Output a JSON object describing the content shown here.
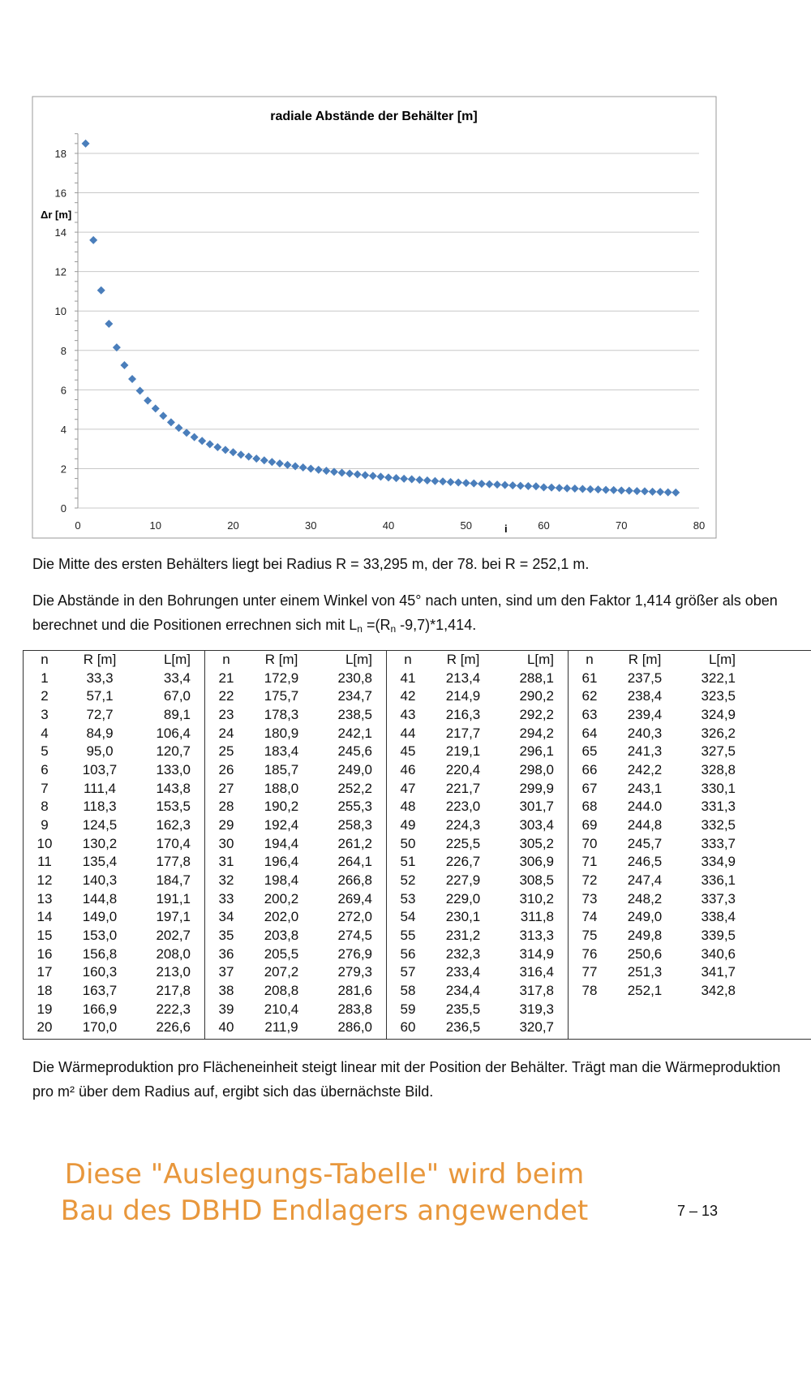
{
  "chart_data": {
    "type": "scatter",
    "title": "radiale Abstände der Behälter [m]",
    "xlabel": "i",
    "ylabel": "Δr [m]",
    "xlim": [
      0,
      80
    ],
    "ylim": [
      0,
      19
    ],
    "xticks": [
      0,
      10,
      20,
      30,
      40,
      50,
      60,
      70,
      80
    ],
    "yticks": [
      0,
      2,
      4,
      6,
      8,
      10,
      12,
      14,
      16,
      18
    ],
    "grid": true,
    "marker": "diamond",
    "color": "#4a7ebb",
    "x": [
      1,
      2,
      3,
      4,
      5,
      6,
      7,
      8,
      9,
      10,
      11,
      12,
      13,
      14,
      15,
      16,
      17,
      18,
      19,
      20,
      21,
      22,
      23,
      24,
      25,
      26,
      27,
      28,
      29,
      30,
      31,
      32,
      33,
      34,
      35,
      36,
      37,
      38,
      39,
      40,
      41,
      42,
      43,
      44,
      45,
      46,
      47,
      48,
      49,
      50,
      51,
      52,
      53,
      54,
      55,
      56,
      57,
      58,
      59,
      60,
      61,
      62,
      63,
      64,
      65,
      66,
      67,
      68,
      69,
      70,
      71,
      72,
      73,
      74,
      75,
      76,
      77
    ],
    "y": [
      18.5,
      13.6,
      11.05,
      9.35,
      8.15,
      7.25,
      6.55,
      5.95,
      5.45,
      5.05,
      4.68,
      4.35,
      4.07,
      3.82,
      3.6,
      3.41,
      3.24,
      3.09,
      2.95,
      2.83,
      2.71,
      2.61,
      2.51,
      2.42,
      2.34,
      2.26,
      2.19,
      2.12,
      2.06,
      2.0,
      1.94,
      1.89,
      1.84,
      1.79,
      1.75,
      1.71,
      1.67,
      1.63,
      1.59,
      1.55,
      1.52,
      1.49,
      1.46,
      1.43,
      1.4,
      1.37,
      1.35,
      1.32,
      1.3,
      1.27,
      1.25,
      1.23,
      1.21,
      1.19,
      1.17,
      1.15,
      1.13,
      1.11,
      1.1,
      1.05,
      1.04,
      1.02,
      1.0,
      0.99,
      0.97,
      0.95,
      0.94,
      0.92,
      0.91,
      0.89,
      0.88,
      0.86,
      0.85,
      0.83,
      0.82,
      0.8,
      0.79
    ]
  },
  "text": {
    "p1": "Die Mitte des ersten Behälters liegt bei Radius R = 33,295 m, der 78. bei R = 252,1 m.",
    "p2a": "Die Abstände in den Bohrungen unter einem Winkel von 45° nach unten, sind um den Faktor 1,414 größer als oben berechnet und die Positionen errechnen sich mit L",
    "p2sub1": "n",
    "p2b": " =(R",
    "p2sub2": "n",
    "p2c": " -9,7)*1,414.",
    "p3": "Die Wärmeproduktion pro Flächeneinheit steigt linear mit der Position der Behälter. Trägt man die Wärmeproduktion pro m² über dem Radius auf, ergibt sich das übernächste Bild.",
    "orange1": "Diese \"Auslegungs-Tabelle\" wird beim",
    "orange2": "Bau des DBHD Endlagers angewendet",
    "page_number": "7 – 13"
  },
  "table": {
    "headers": [
      "n",
      "R [m]",
      "L[m]"
    ],
    "groups": [
      [
        [
          "1",
          "33,3",
          "33,4"
        ],
        [
          "2",
          "57,1",
          "67,0"
        ],
        [
          "3",
          "72,7",
          "89,1"
        ],
        [
          "4",
          "84,9",
          "106,4"
        ],
        [
          "5",
          "95,0",
          "120,7"
        ],
        [
          "6",
          "103,7",
          "133,0"
        ],
        [
          "7",
          "111,4",
          "143,8"
        ],
        [
          "8",
          "118,3",
          "153,5"
        ],
        [
          "9",
          "124,5",
          "162,3"
        ],
        [
          "10",
          "130,2",
          "170,4"
        ],
        [
          "11",
          "135,4",
          "177,8"
        ],
        [
          "12",
          "140,3",
          "184,7"
        ],
        [
          "13",
          "144,8",
          "191,1"
        ],
        [
          "14",
          "149,0",
          "197,1"
        ],
        [
          "15",
          "153,0",
          "202,7"
        ],
        [
          "16",
          "156,8",
          "208,0"
        ],
        [
          "17",
          "160,3",
          "213,0"
        ],
        [
          "18",
          "163,7",
          "217,8"
        ],
        [
          "19",
          "166,9",
          "222,3"
        ],
        [
          "20",
          "170,0",
          "226,6"
        ]
      ],
      [
        [
          "21",
          "172,9",
          "230,8"
        ],
        [
          "22",
          "175,7",
          "234,7"
        ],
        [
          "23",
          "178,3",
          "238,5"
        ],
        [
          "24",
          "180,9",
          "242,1"
        ],
        [
          "25",
          "183,4",
          "245,6"
        ],
        [
          "26",
          "185,7",
          "249,0"
        ],
        [
          "27",
          "188,0",
          "252,2"
        ],
        [
          "28",
          "190,2",
          "255,3"
        ],
        [
          "29",
          "192,4",
          "258,3"
        ],
        [
          "30",
          "194,4",
          "261,2"
        ],
        [
          "31",
          "196,4",
          "264,1"
        ],
        [
          "32",
          "198,4",
          "266,8"
        ],
        [
          "33",
          "200,2",
          "269,4"
        ],
        [
          "34",
          "202,0",
          "272,0"
        ],
        [
          "35",
          "203,8",
          "274,5"
        ],
        [
          "36",
          "205,5",
          "276,9"
        ],
        [
          "37",
          "207,2",
          "279,3"
        ],
        [
          "38",
          "208,8",
          "281,6"
        ],
        [
          "39",
          "210,4",
          "283,8"
        ],
        [
          "40",
          "211,9",
          "286,0"
        ]
      ],
      [
        [
          "41",
          "213,4",
          "288,1"
        ],
        [
          "42",
          "214,9",
          "290,2"
        ],
        [
          "43",
          "216,3",
          "292,2"
        ],
        [
          "44",
          "217,7",
          "294,2"
        ],
        [
          "45",
          "219,1",
          "296,1"
        ],
        [
          "46",
          "220,4",
          "298,0"
        ],
        [
          "47",
          "221,7",
          "299,9"
        ],
        [
          "48",
          "223,0",
          "301,7"
        ],
        [
          "49",
          "224,3",
          "303,4"
        ],
        [
          "50",
          "225,5",
          "305,2"
        ],
        [
          "51",
          "226,7",
          "306,9"
        ],
        [
          "52",
          "227,9",
          "308,5"
        ],
        [
          "53",
          "229,0",
          "310,2"
        ],
        [
          "54",
          "230,1",
          "311,8"
        ],
        [
          "55",
          "231,2",
          "313,3"
        ],
        [
          "56",
          "232,3",
          "314,9"
        ],
        [
          "57",
          "233,4",
          "316,4"
        ],
        [
          "58",
          "234,4",
          "317,8"
        ],
        [
          "59",
          "235,5",
          "319,3"
        ],
        [
          "60",
          "236,5",
          "320,7"
        ]
      ],
      [
        [
          "61",
          "237,5",
          "322,1"
        ],
        [
          "62",
          "238,4",
          "323,5"
        ],
        [
          "63",
          "239,4",
          "324,9"
        ],
        [
          "64",
          "240,3",
          "326,2"
        ],
        [
          "65",
          "241,3",
          "327,5"
        ],
        [
          "66",
          "242,2",
          "328,8"
        ],
        [
          "67",
          "243,1",
          "330,1"
        ],
        [
          "68",
          "244.0",
          "331,3"
        ],
        [
          "69",
          "244,8",
          "332,5"
        ],
        [
          "70",
          "245,7",
          "333,7"
        ],
        [
          "71",
          "246,5",
          "334,9"
        ],
        [
          "72",
          "247,4",
          "336,1"
        ],
        [
          "73",
          "248,2",
          "337,3"
        ],
        [
          "74",
          "249,0",
          "338,4"
        ],
        [
          "75",
          "249,8",
          "339,5"
        ],
        [
          "76",
          "250,6",
          "340,6"
        ],
        [
          "77",
          "251,3",
          "341,7"
        ],
        [
          "78",
          "252,1",
          "342,8"
        ]
      ]
    ]
  }
}
